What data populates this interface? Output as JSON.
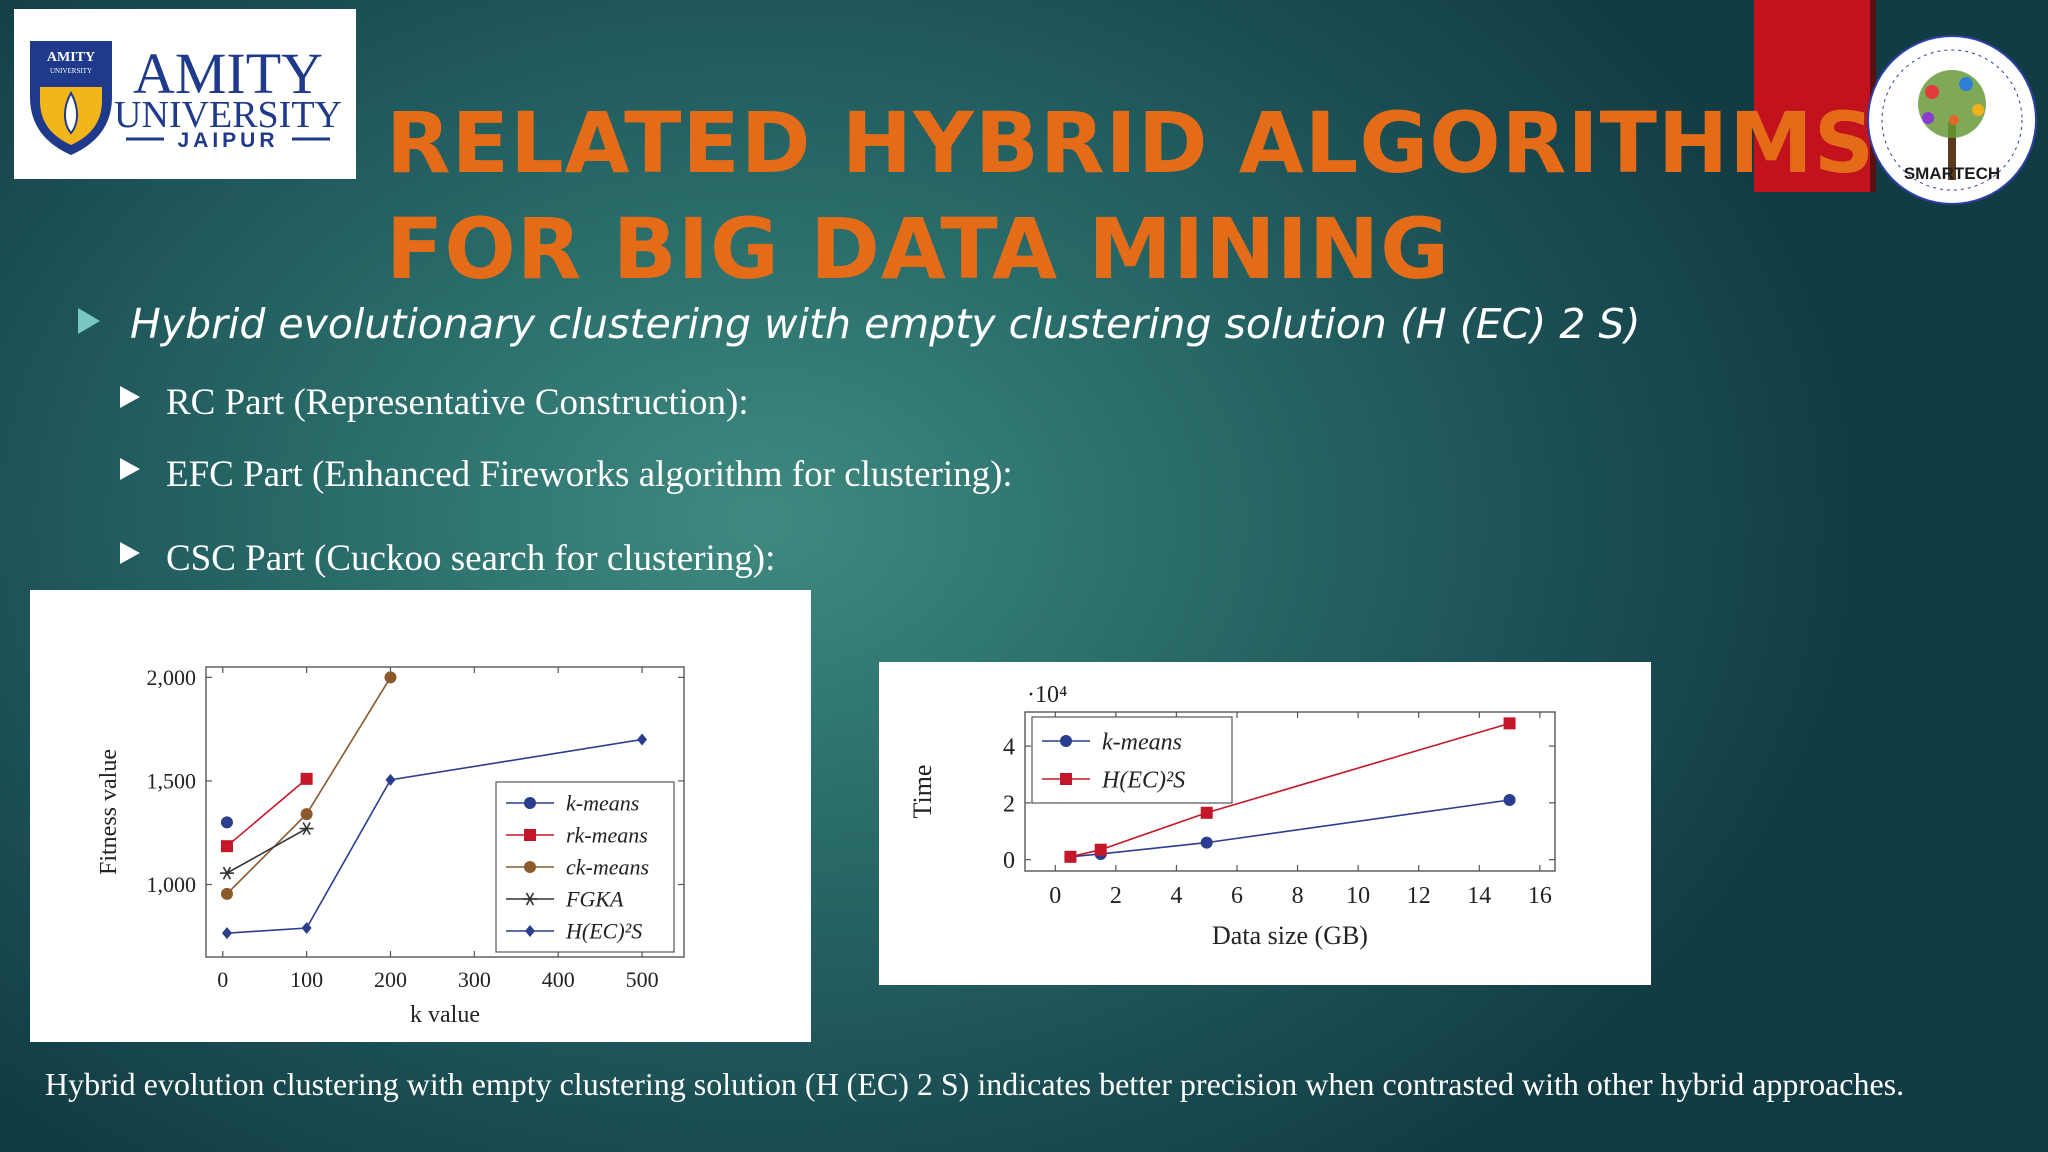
{
  "logo": {
    "shield_text": "AMITY",
    "shield_subtext": "UNIVERSITY",
    "name_line1": "AMITY",
    "name_line2": "UNIVERSITY",
    "name_line3": "JAIPUR"
  },
  "seal": {
    "label": "SMARTECH"
  },
  "title": "RELATED HYBRID ALGORITHMS FOR BIG DATA MINING",
  "bullets": {
    "main": "Hybrid evolutionary clustering with empty clustering solution (H (EC) 2 S)",
    "sub": [
      "RC Part (Representative Construction):",
      "EFC Part (Enhanced Fireworks algorithm for clustering):",
      "CSC Part (Cuckoo search for clustering):"
    ]
  },
  "caption": "Hybrid evolution clustering with empty clustering solution (H (EC) 2 S) indicates better precision when contrasted with other hybrid approaches.",
  "chart_data": [
    {
      "type": "line",
      "xlabel": "k value",
      "ylabel": "Fitness value",
      "xlim": [
        -20,
        550
      ],
      "ylim": [
        650,
        2050
      ],
      "x_ticks": [
        0,
        100,
        200,
        300,
        400,
        500
      ],
      "x_tick_labels": [
        "0",
        "100",
        "200",
        "300",
        "400",
        "500"
      ],
      "y_ticks": [
        1000,
        1500,
        2000
      ],
      "y_tick_labels": [
        "1,000",
        "1,500",
        "2,000"
      ],
      "legend_position": "lower-right",
      "series": [
        {
          "name": "k-means",
          "color": "#2b3d8f",
          "marker": "circle",
          "points": [
            [
              5,
              1300
            ]
          ]
        },
        {
          "name": "rk-means",
          "color": "#c5172a",
          "marker": "square",
          "points": [
            [
              5,
              1185
            ],
            [
              100,
              1510
            ]
          ]
        },
        {
          "name": "ck-means",
          "color": "#8a5a2b",
          "marker": "circle",
          "points": [
            [
              5,
              955
            ],
            [
              100,
              1340
            ],
            [
              200,
              2000
            ]
          ]
        },
        {
          "name": "FGKA",
          "color": "#333333",
          "marker": "star",
          "points": [
            [
              5,
              1055
            ],
            [
              100,
              1270
            ]
          ]
        },
        {
          "name": "H(EC)²S",
          "color": "#2b3d8f",
          "marker": "diamond",
          "points": [
            [
              5,
              765
            ],
            [
              100,
              790
            ],
            [
              200,
              1505
            ],
            [
              500,
              1700
            ]
          ]
        }
      ]
    },
    {
      "type": "line",
      "xlabel": "Data size (GB)",
      "ylabel": "Time",
      "scale_label": "·10⁴",
      "xlim": [
        -1,
        16.5
      ],
      "ylim": [
        -0.4,
        5.2
      ],
      "x_ticks": [
        0,
        2,
        4,
        6,
        8,
        10,
        12,
        14,
        16
      ],
      "x_tick_labels": [
        "0",
        "2",
        "4",
        "6",
        "8",
        "10",
        "12",
        "14",
        "16"
      ],
      "y_ticks": [
        0,
        2,
        4
      ],
      "y_tick_labels": [
        "0",
        "2",
        "4"
      ],
      "legend_position": "top-left",
      "series": [
        {
          "name": "k-means",
          "color": "#2b3d8f",
          "marker": "circle",
          "points": [
            [
              0.5,
              0.1
            ],
            [
              1.5,
              0.2
            ],
            [
              5,
              0.6
            ],
            [
              15,
              2.1
            ]
          ]
        },
        {
          "name": "H(EC)²S",
          "color": "#c5172a",
          "marker": "square",
          "points": [
            [
              0.5,
              0.1
            ],
            [
              1.5,
              0.35
            ],
            [
              5,
              1.65
            ],
            [
              15,
              4.8
            ]
          ]
        }
      ]
    }
  ]
}
